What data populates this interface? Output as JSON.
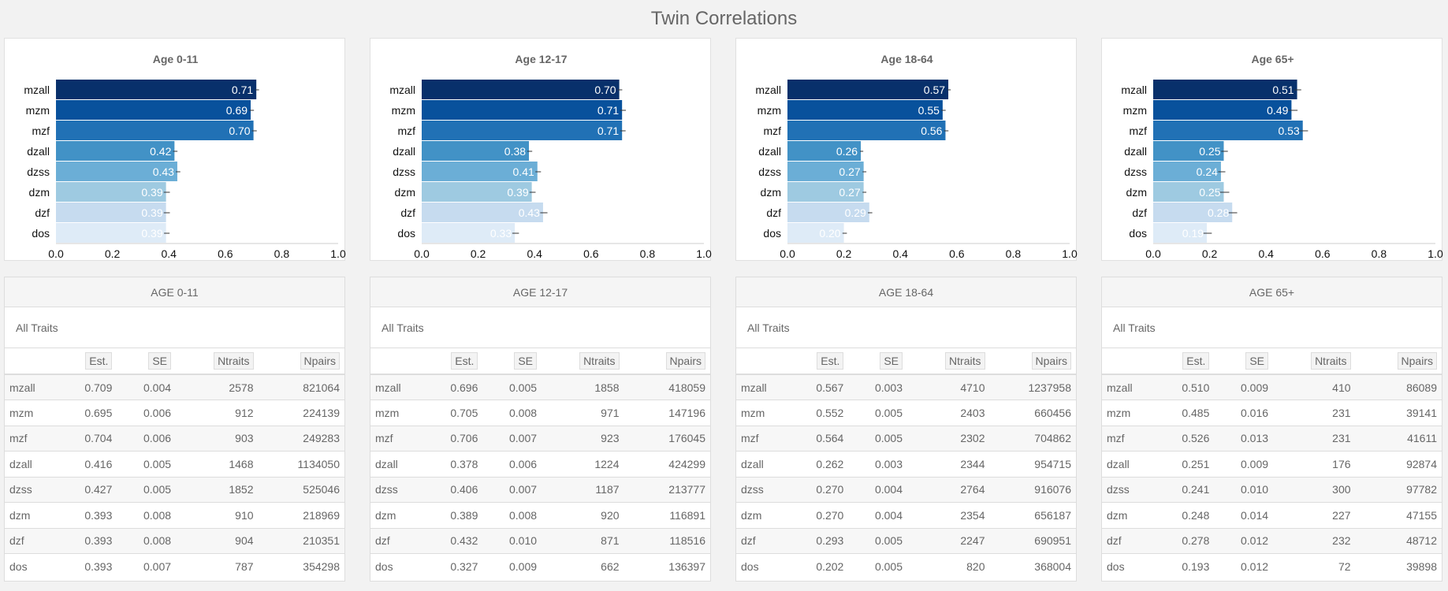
{
  "title": "Twin Correlations",
  "chart_data": [
    {
      "type": "bar",
      "title": "Age 0-11",
      "categories": [
        "mzall",
        "mzm",
        "mzf",
        "dzall",
        "dzss",
        "dzm",
        "dzf",
        "dos"
      ],
      "values": [
        0.71,
        0.69,
        0.7,
        0.42,
        0.43,
        0.39,
        0.39,
        0.39
      ],
      "error": [
        0.004,
        0.006,
        0.006,
        0.005,
        0.005,
        0.008,
        0.008,
        0.007
      ],
      "xlim": [
        0,
        1.0
      ],
      "xticks": [
        "0.0",
        "0.2",
        "0.4",
        "0.6",
        "0.8",
        "1.0"
      ]
    },
    {
      "type": "bar",
      "title": "Age 12-17",
      "categories": [
        "mzall",
        "mzm",
        "mzf",
        "dzall",
        "dzss",
        "dzm",
        "dzf",
        "dos"
      ],
      "values": [
        0.7,
        0.71,
        0.71,
        0.38,
        0.41,
        0.39,
        0.43,
        0.33
      ],
      "error": [
        0.005,
        0.008,
        0.007,
        0.006,
        0.007,
        0.008,
        0.01,
        0.009
      ],
      "xlim": [
        0,
        1.0
      ],
      "xticks": [
        "0.0",
        "0.2",
        "0.4",
        "0.6",
        "0.8",
        "1.0"
      ]
    },
    {
      "type": "bar",
      "title": "Age 18-64",
      "categories": [
        "mzall",
        "mzm",
        "mzf",
        "dzall",
        "dzss",
        "dzm",
        "dzf",
        "dos"
      ],
      "values": [
        0.57,
        0.55,
        0.56,
        0.26,
        0.27,
        0.27,
        0.29,
        0.2
      ],
      "error": [
        0.003,
        0.005,
        0.005,
        0.003,
        0.004,
        0.004,
        0.005,
        0.005
      ],
      "xlim": [
        0,
        1.0
      ],
      "xticks": [
        "0.0",
        "0.2",
        "0.4",
        "0.6",
        "0.8",
        "1.0"
      ]
    },
    {
      "type": "bar",
      "title": "Age 65+",
      "categories": [
        "mzall",
        "mzm",
        "mzf",
        "dzall",
        "dzss",
        "dzm",
        "dzf",
        "dos"
      ],
      "values": [
        0.51,
        0.49,
        0.53,
        0.25,
        0.24,
        0.25,
        0.28,
        0.19
      ],
      "error": [
        0.009,
        0.016,
        0.013,
        0.009,
        0.01,
        0.014,
        0.012,
        0.012
      ],
      "xlim": [
        0,
        1.0
      ],
      "xticks": [
        "0.0",
        "0.2",
        "0.4",
        "0.6",
        "0.8",
        "1.0"
      ]
    }
  ],
  "bar_colors": [
    "#08306b",
    "#08519c",
    "#2171b5",
    "#4292c6",
    "#6baed6",
    "#9ecae1",
    "#c6dbef",
    "#deebf7"
  ],
  "tables": [
    {
      "title": "AGE 0-11",
      "subtitle": "All Traits",
      "headers": [
        "Est.",
        "SE",
        "Ntraits",
        "Npairs"
      ],
      "rows": [
        [
          "mzall",
          "0.709",
          "0.004",
          "2578",
          "821064"
        ],
        [
          "mzm",
          "0.695",
          "0.006",
          "912",
          "224139"
        ],
        [
          "mzf",
          "0.704",
          "0.006",
          "903",
          "249283"
        ],
        [
          "dzall",
          "0.416",
          "0.005",
          "1468",
          "1134050"
        ],
        [
          "dzss",
          "0.427",
          "0.005",
          "1852",
          "525046"
        ],
        [
          "dzm",
          "0.393",
          "0.008",
          "910",
          "218969"
        ],
        [
          "dzf",
          "0.393",
          "0.008",
          "904",
          "210351"
        ],
        [
          "dos",
          "0.393",
          "0.007",
          "787",
          "354298"
        ]
      ]
    },
    {
      "title": "AGE 12-17",
      "subtitle": "All Traits",
      "headers": [
        "Est.",
        "SE",
        "Ntraits",
        "Npairs"
      ],
      "rows": [
        [
          "mzall",
          "0.696",
          "0.005",
          "1858",
          "418059"
        ],
        [
          "mzm",
          "0.705",
          "0.008",
          "971",
          "147196"
        ],
        [
          "mzf",
          "0.706",
          "0.007",
          "923",
          "176045"
        ],
        [
          "dzall",
          "0.378",
          "0.006",
          "1224",
          "424299"
        ],
        [
          "dzss",
          "0.406",
          "0.007",
          "1187",
          "213777"
        ],
        [
          "dzm",
          "0.389",
          "0.008",
          "920",
          "116891"
        ],
        [
          "dzf",
          "0.432",
          "0.010",
          "871",
          "118516"
        ],
        [
          "dos",
          "0.327",
          "0.009",
          "662",
          "136397"
        ]
      ]
    },
    {
      "title": "AGE 18-64",
      "subtitle": "All Traits",
      "headers": [
        "Est.",
        "SE",
        "Ntraits",
        "Npairs"
      ],
      "rows": [
        [
          "mzall",
          "0.567",
          "0.003",
          "4710",
          "1237958"
        ],
        [
          "mzm",
          "0.552",
          "0.005",
          "2403",
          "660456"
        ],
        [
          "mzf",
          "0.564",
          "0.005",
          "2302",
          "704862"
        ],
        [
          "dzall",
          "0.262",
          "0.003",
          "2344",
          "954715"
        ],
        [
          "dzss",
          "0.270",
          "0.004",
          "2764",
          "916076"
        ],
        [
          "dzm",
          "0.270",
          "0.004",
          "2354",
          "656187"
        ],
        [
          "dzf",
          "0.293",
          "0.005",
          "2247",
          "690951"
        ],
        [
          "dos",
          "0.202",
          "0.005",
          "820",
          "368004"
        ]
      ]
    },
    {
      "title": "AGE 65+",
      "subtitle": "All Traits",
      "headers": [
        "Est.",
        "SE",
        "Ntraits",
        "Npairs"
      ],
      "rows": [
        [
          "mzall",
          "0.510",
          "0.009",
          "410",
          "86089"
        ],
        [
          "mzm",
          "0.485",
          "0.016",
          "231",
          "39141"
        ],
        [
          "mzf",
          "0.526",
          "0.013",
          "231",
          "41611"
        ],
        [
          "dzall",
          "0.251",
          "0.009",
          "176",
          "92874"
        ],
        [
          "dzss",
          "0.241",
          "0.010",
          "300",
          "97782"
        ],
        [
          "dzm",
          "0.248",
          "0.014",
          "227",
          "47155"
        ],
        [
          "dzf",
          "0.278",
          "0.012",
          "232",
          "48712"
        ],
        [
          "dos",
          "0.193",
          "0.012",
          "72",
          "39898"
        ]
      ]
    }
  ]
}
